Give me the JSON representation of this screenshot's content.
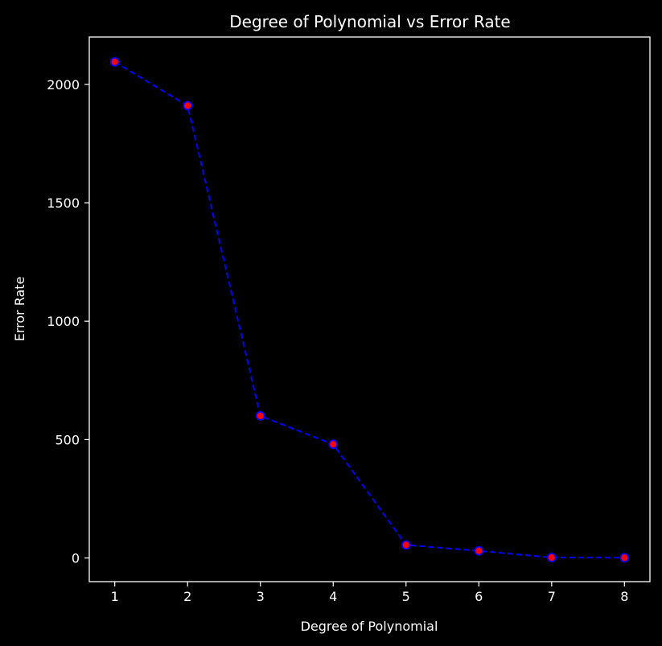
{
  "chart_data": {
    "type": "line",
    "title": "Degree of Polynomial vs Error Rate",
    "xlabel": "Degree of Polynomial",
    "ylabel": "Error Rate",
    "x": [
      1,
      2,
      3,
      4,
      5,
      6,
      7,
      8
    ],
    "series": [
      {
        "values": [
          2095,
          1910,
          600,
          480,
          55,
          30,
          2,
          1
        ]
      }
    ],
    "xlim": [
      0.65,
      8.35
    ],
    "ylim": [
      -100,
      2200
    ],
    "xticks": [
      1,
      2,
      3,
      4,
      5,
      6,
      7,
      8
    ],
    "yticks": [
      0,
      500,
      1000,
      1500,
      2000
    ],
    "xtick_labels": [
      "1",
      "2",
      "3",
      "4",
      "5",
      "6",
      "7",
      "8"
    ],
    "ytick_labels": [
      "0",
      "500",
      "1000",
      "1500",
      "2000"
    ],
    "grid": false,
    "legend": "none",
    "style": {
      "background": "#000000",
      "axes_color": "#ffffff",
      "text_color": "#ffffff",
      "line_color": "#0000ff",
      "line_style": "dashed",
      "marker_fill": "#ff0000",
      "marker_edge": "#0000ff"
    }
  }
}
